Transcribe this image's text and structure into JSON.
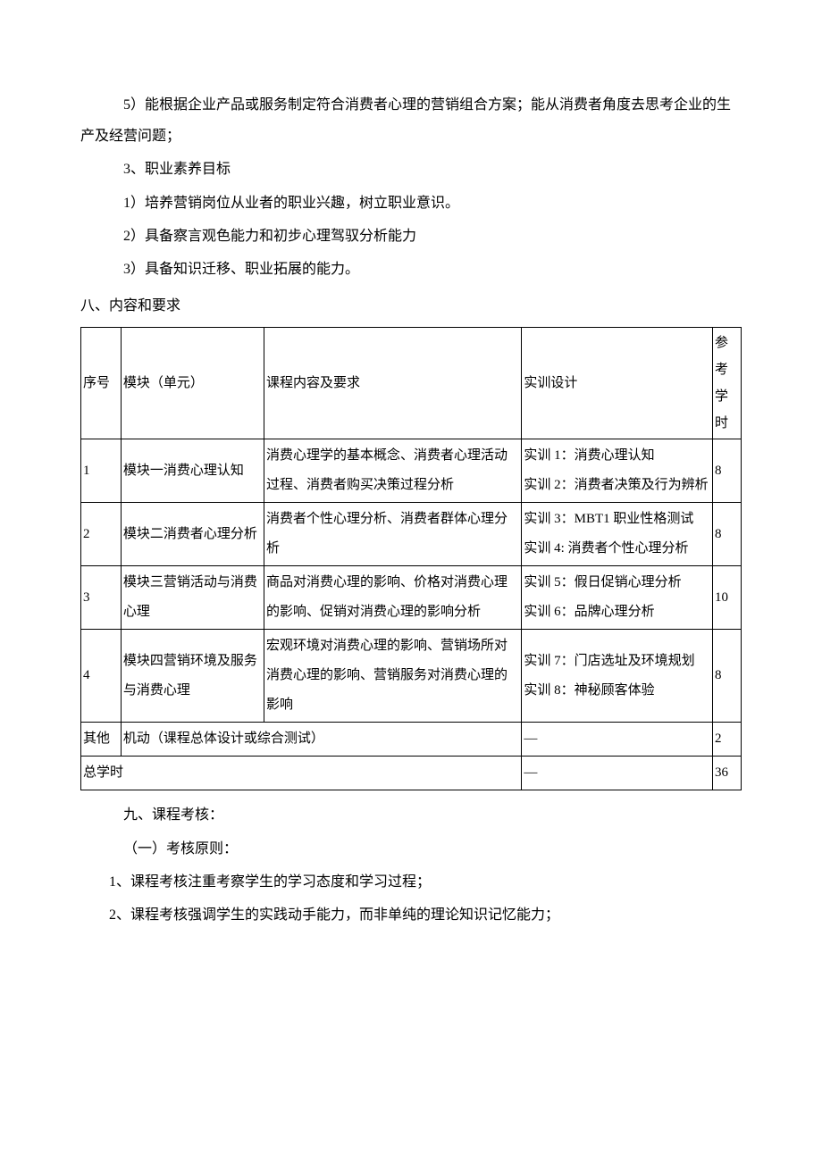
{
  "paragraphs": {
    "p1": "5）能根据企业产品或服务制定符合消费者心理的营销组合方案；能从消费者角度去思考企业的生产及经营问题；",
    "p2": "3、职业素养目标",
    "p3": "1）培养营销岗位从业者的职业兴趣，树立职业意识。",
    "p4": "2）具备察言观色能力和初步心理驾驭分析能力",
    "p5": "3）具备知识迁移、职业拓展的能力。"
  },
  "section8_title": "八、内容和要求",
  "table": {
    "headers": {
      "seq": "序号",
      "module": "模块（单元）",
      "content": "课程内容及要求",
      "practice": "实训设计",
      "hours": "参考学时"
    },
    "rows": [
      {
        "seq": "1",
        "module": "模块一消费心理认知",
        "content": "消费心理学的基本概念、消费者心理活动过程、消费者购买决策过程分析",
        "practice": "实训 1：消费心理认知\n实训 2：消费者决策及行为辨析",
        "hours": "8"
      },
      {
        "seq": "2",
        "module": "模块二消费者心理分析",
        "content": "消费者个性心理分析、消费者群体心理分析",
        "practice": "实训 3：MBT1 职业性格测试\n实训 4: 消费者个性心理分析",
        "hours": "8"
      },
      {
        "seq": "3",
        "module": "模块三营销活动与消费心理",
        "content": "商品对消费心理的影响、价格对消费心理的影响、促销对消费心理的影响分析",
        "practice": "实训 5：假日促销心理分析\n实训 6：品牌心理分析",
        "hours": "10"
      },
      {
        "seq": "4",
        "module": "模块四营销环境及服务与消费心理",
        "content": "宏观环境对消费心理的影响、营销场所对消费心理的影响、营销服务对消费心理的影响",
        "practice": "实训 7：门店选址及环境规划\n实训 8：神秘顾客体验",
        "hours": "8"
      }
    ],
    "other_row": {
      "seq": "其他",
      "label": "机动（课程总体设计或综合测试）",
      "practice": "—",
      "hours": "2"
    },
    "total_row": {
      "label": "总学时",
      "practice": "—",
      "hours": "36"
    }
  },
  "section9": {
    "title": "九、课程考核：",
    "sub1": "（一）考核原则：",
    "item1": "1、课程考核注重考察学生的学习态度和学习过程；",
    "item2": "2、课程考核强调学生的实践动手能力，而非单纯的理论知识记忆能力；"
  }
}
